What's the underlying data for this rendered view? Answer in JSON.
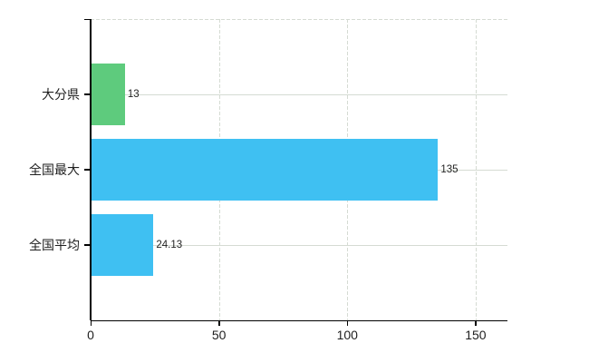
{
  "chart_data": {
    "type": "bar",
    "orientation": "horizontal",
    "title": "",
    "categories": [
      "大分県",
      "全国最大",
      "全国平均"
    ],
    "values": [
      13,
      135,
      24.13
    ],
    "value_labels": [
      "13",
      "135",
      "24.13"
    ],
    "bar_colors": [
      "#5ecb7d",
      "#3fc0f2",
      "#3fc0f2"
    ],
    "xticks": [
      0,
      50,
      100,
      150
    ],
    "xtick_labels": [
      "0",
      "50",
      "100",
      "150"
    ],
    "xlim": [
      0,
      162.4
    ],
    "grid": "on",
    "gridline_style": {
      "vertical": "dashed",
      "horizontal": "solid",
      "top_border": "dashed"
    },
    "legend": "none"
  },
  "style": {
    "background": "#ffffff",
    "gridline_color": "#d5dbd3",
    "axis_color": "#000000",
    "text_color": "#1f1f1f"
  }
}
